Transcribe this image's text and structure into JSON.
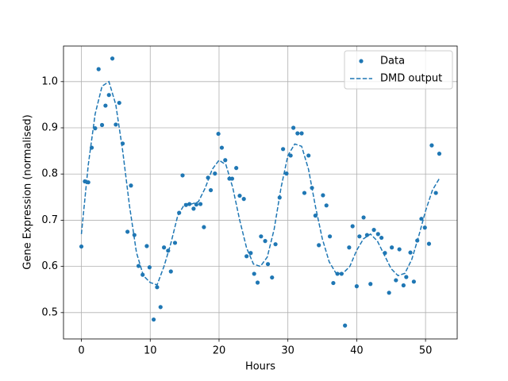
{
  "chart_data": {
    "type": "scatter",
    "xlabel": "Hours",
    "ylabel": "Gene Expression (normalised)",
    "xlim": [
      -2.6,
      54.6
    ],
    "ylim": [
      0.443,
      1.077
    ],
    "xticks": [
      0,
      10,
      20,
      30,
      40,
      50
    ],
    "yticks": [
      0.5,
      0.6,
      0.7,
      0.8,
      0.9,
      {
        "value": 1.0,
        "label": "1.0"
      }
    ],
    "grid": true,
    "legend": "upper right",
    "series": [
      {
        "name": "Data",
        "type": "scatter",
        "color": "#1f77b4",
        "x": [
          0,
          0.5,
          1.0,
          1.5,
          2,
          2.5,
          3,
          3.5,
          4,
          4.5,
          5,
          5.5,
          6,
          6.7,
          7.2,
          7.7,
          8.3,
          8.9,
          9.5,
          9.9,
          10.5,
          11,
          11.5,
          12,
          12.6,
          13,
          13.6,
          14.2,
          14.7,
          15.2,
          15.7,
          16.3,
          16.7,
          17.3,
          17.8,
          18.4,
          18.8,
          19.4,
          19.9,
          20.4,
          20.9,
          21.5,
          21.9,
          22.5,
          23,
          23.6,
          24,
          24.6,
          25.1,
          25.6,
          26.1,
          26.7,
          27.1,
          27.7,
          28.2,
          28.8,
          29.3,
          29.8,
          30.4,
          30.8,
          31.4,
          32,
          32.4,
          33,
          33.5,
          34,
          34.5,
          35.1,
          35.6,
          36.1,
          36.6,
          37.2,
          37.8,
          38.3,
          38.9,
          39.4,
          40,
          40.4,
          41,
          41.5,
          42,
          42.5,
          43.1,
          43.6,
          44.1,
          44.7,
          45.1,
          45.7,
          46.2,
          46.8,
          47.2,
          47.8,
          48.3,
          48.8,
          49.4,
          49.9,
          50.5,
          50.9,
          51.5,
          52
        ],
        "values": [
          0.643,
          0.784,
          0.782,
          0.857,
          0.899,
          1.027,
          0.906,
          0.948,
          0.971,
          1.05,
          0.907,
          0.954,
          0.866,
          0.675,
          0.775,
          0.668,
          0.601,
          0.582,
          0.644,
          0.598,
          0.485,
          0.555,
          0.512,
          0.641,
          0.634,
          0.589,
          0.651,
          0.716,
          0.797,
          0.733,
          0.735,
          0.725,
          0.734,
          0.735,
          0.685,
          0.792,
          0.765,
          0.801,
          0.887,
          0.857,
          0.83,
          0.79,
          0.79,
          0.813,
          0.753,
          0.746,
          0.622,
          0.629,
          0.584,
          0.565,
          0.665,
          0.655,
          0.605,
          0.576,
          0.648,
          0.749,
          0.854,
          0.801,
          0.84,
          0.9,
          0.888,
          0.888,
          0.759,
          0.84,
          0.77,
          0.71,
          0.646,
          0.754,
          0.732,
          0.665,
          0.564,
          0.584,
          0.584,
          0.472,
          0.641,
          0.687,
          0.557,
          0.665,
          0.706,
          0.668,
          0.562,
          0.679,
          0.67,
          0.662,
          0.629,
          0.543,
          0.641,
          0.57,
          0.637,
          0.559,
          0.577,
          0.63,
          0.567,
          0.656,
          0.703,
          0.684,
          0.649,
          0.862,
          0.759,
          0.844
        ]
      },
      {
        "name": "DMD output",
        "type": "line",
        "color": "#1f77b4",
        "dash": "dashed",
        "x": [
          0,
          1,
          2,
          3,
          4,
          5,
          6,
          7,
          8,
          9,
          10,
          11,
          12,
          13,
          14,
          15,
          16,
          17,
          18,
          19,
          20,
          21,
          22,
          23,
          24,
          25,
          26,
          27,
          28,
          29,
          30,
          31,
          32,
          33,
          34,
          35,
          36,
          37,
          38,
          39,
          40,
          41,
          42,
          43,
          44,
          45,
          46,
          47,
          48,
          49,
          50,
          51,
          52
        ],
        "values": [
          0.67,
          0.82,
          0.93,
          0.99,
          1.0,
          0.95,
          0.85,
          0.73,
          0.63,
          0.58,
          0.565,
          0.56,
          0.6,
          0.65,
          0.71,
          0.735,
          0.735,
          0.74,
          0.77,
          0.81,
          0.83,
          0.82,
          0.77,
          0.7,
          0.64,
          0.605,
          0.6,
          0.62,
          0.68,
          0.77,
          0.84,
          0.865,
          0.86,
          0.81,
          0.73,
          0.66,
          0.61,
          0.585,
          0.585,
          0.6,
          0.635,
          0.66,
          0.67,
          0.655,
          0.625,
          0.595,
          0.58,
          0.585,
          0.615,
          0.665,
          0.72,
          0.765,
          0.79
        ]
      }
    ]
  }
}
